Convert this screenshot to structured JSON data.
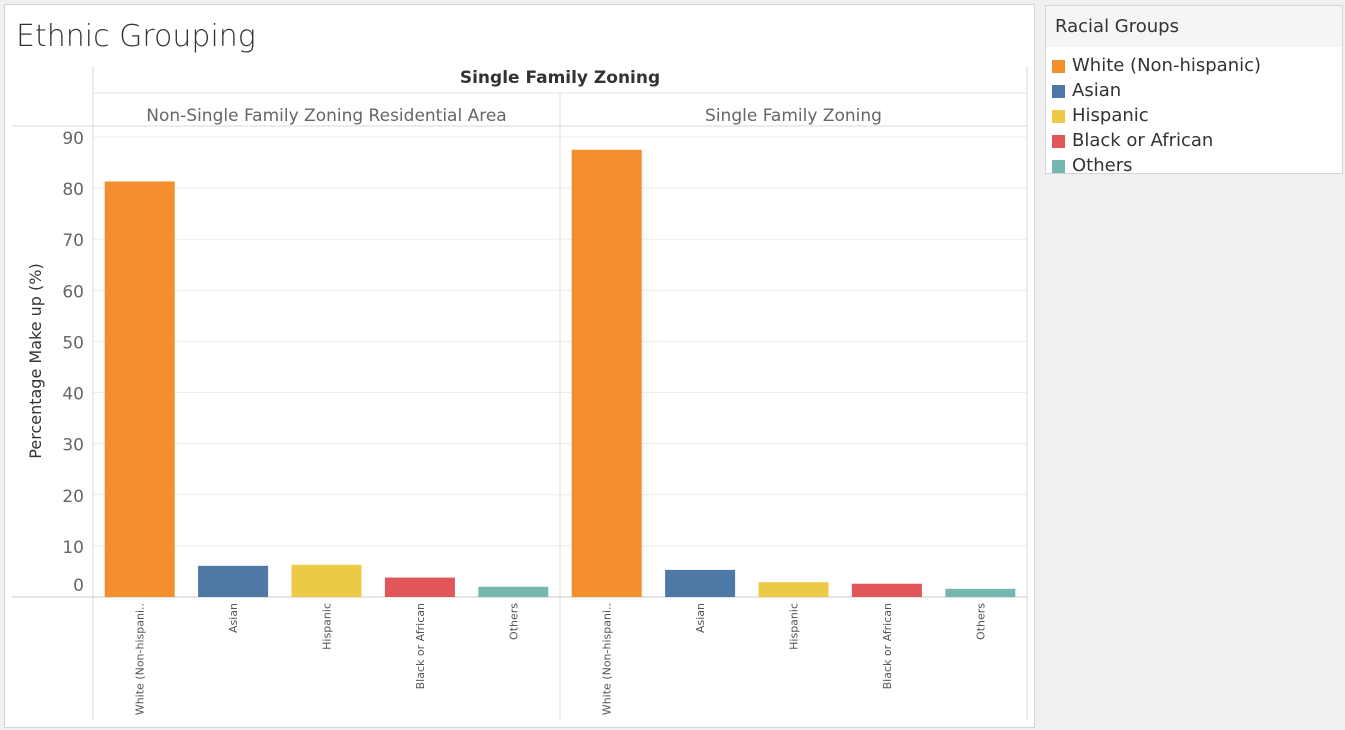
{
  "chart_data": {
    "type": "bar",
    "title": "Ethnic Grouping",
    "column_header": "Single Family Zoning",
    "ylabel": "Percentage Make up (%)",
    "ylim": [
      0,
      90
    ],
    "yticks": [
      0,
      10,
      20,
      30,
      40,
      50,
      60,
      70,
      80,
      90
    ],
    "grid": true,
    "legend_placement": "top-right",
    "categories": [
      "White (Non-hispani..",
      "Asian",
      "Hispanic",
      "Black or African",
      "Others"
    ],
    "panels": [
      {
        "name": "Non-Single Family Zoning Residential Area",
        "values": [
          81.3,
          6.1,
          6.3,
          3.8,
          2.0
        ]
      },
      {
        "name": "Single Family Zoning",
        "values": [
          87.5,
          5.3,
          2.9,
          2.6,
          1.6
        ]
      }
    ],
    "colors": [
      "#f28e2b",
      "#4e79a7",
      "#edc948",
      "#e15759",
      "#76b7b2"
    ]
  },
  "legend": {
    "title": "Racial Groups",
    "items": [
      {
        "label": "White (Non-hispanic)",
        "color": "#f28e2b"
      },
      {
        "label": "Asian",
        "color": "#4e79a7"
      },
      {
        "label": "Hispanic",
        "color": "#edc948"
      },
      {
        "label": "Black or African",
        "color": "#e15759"
      },
      {
        "label": "Others",
        "color": "#76b7b2"
      }
    ]
  }
}
